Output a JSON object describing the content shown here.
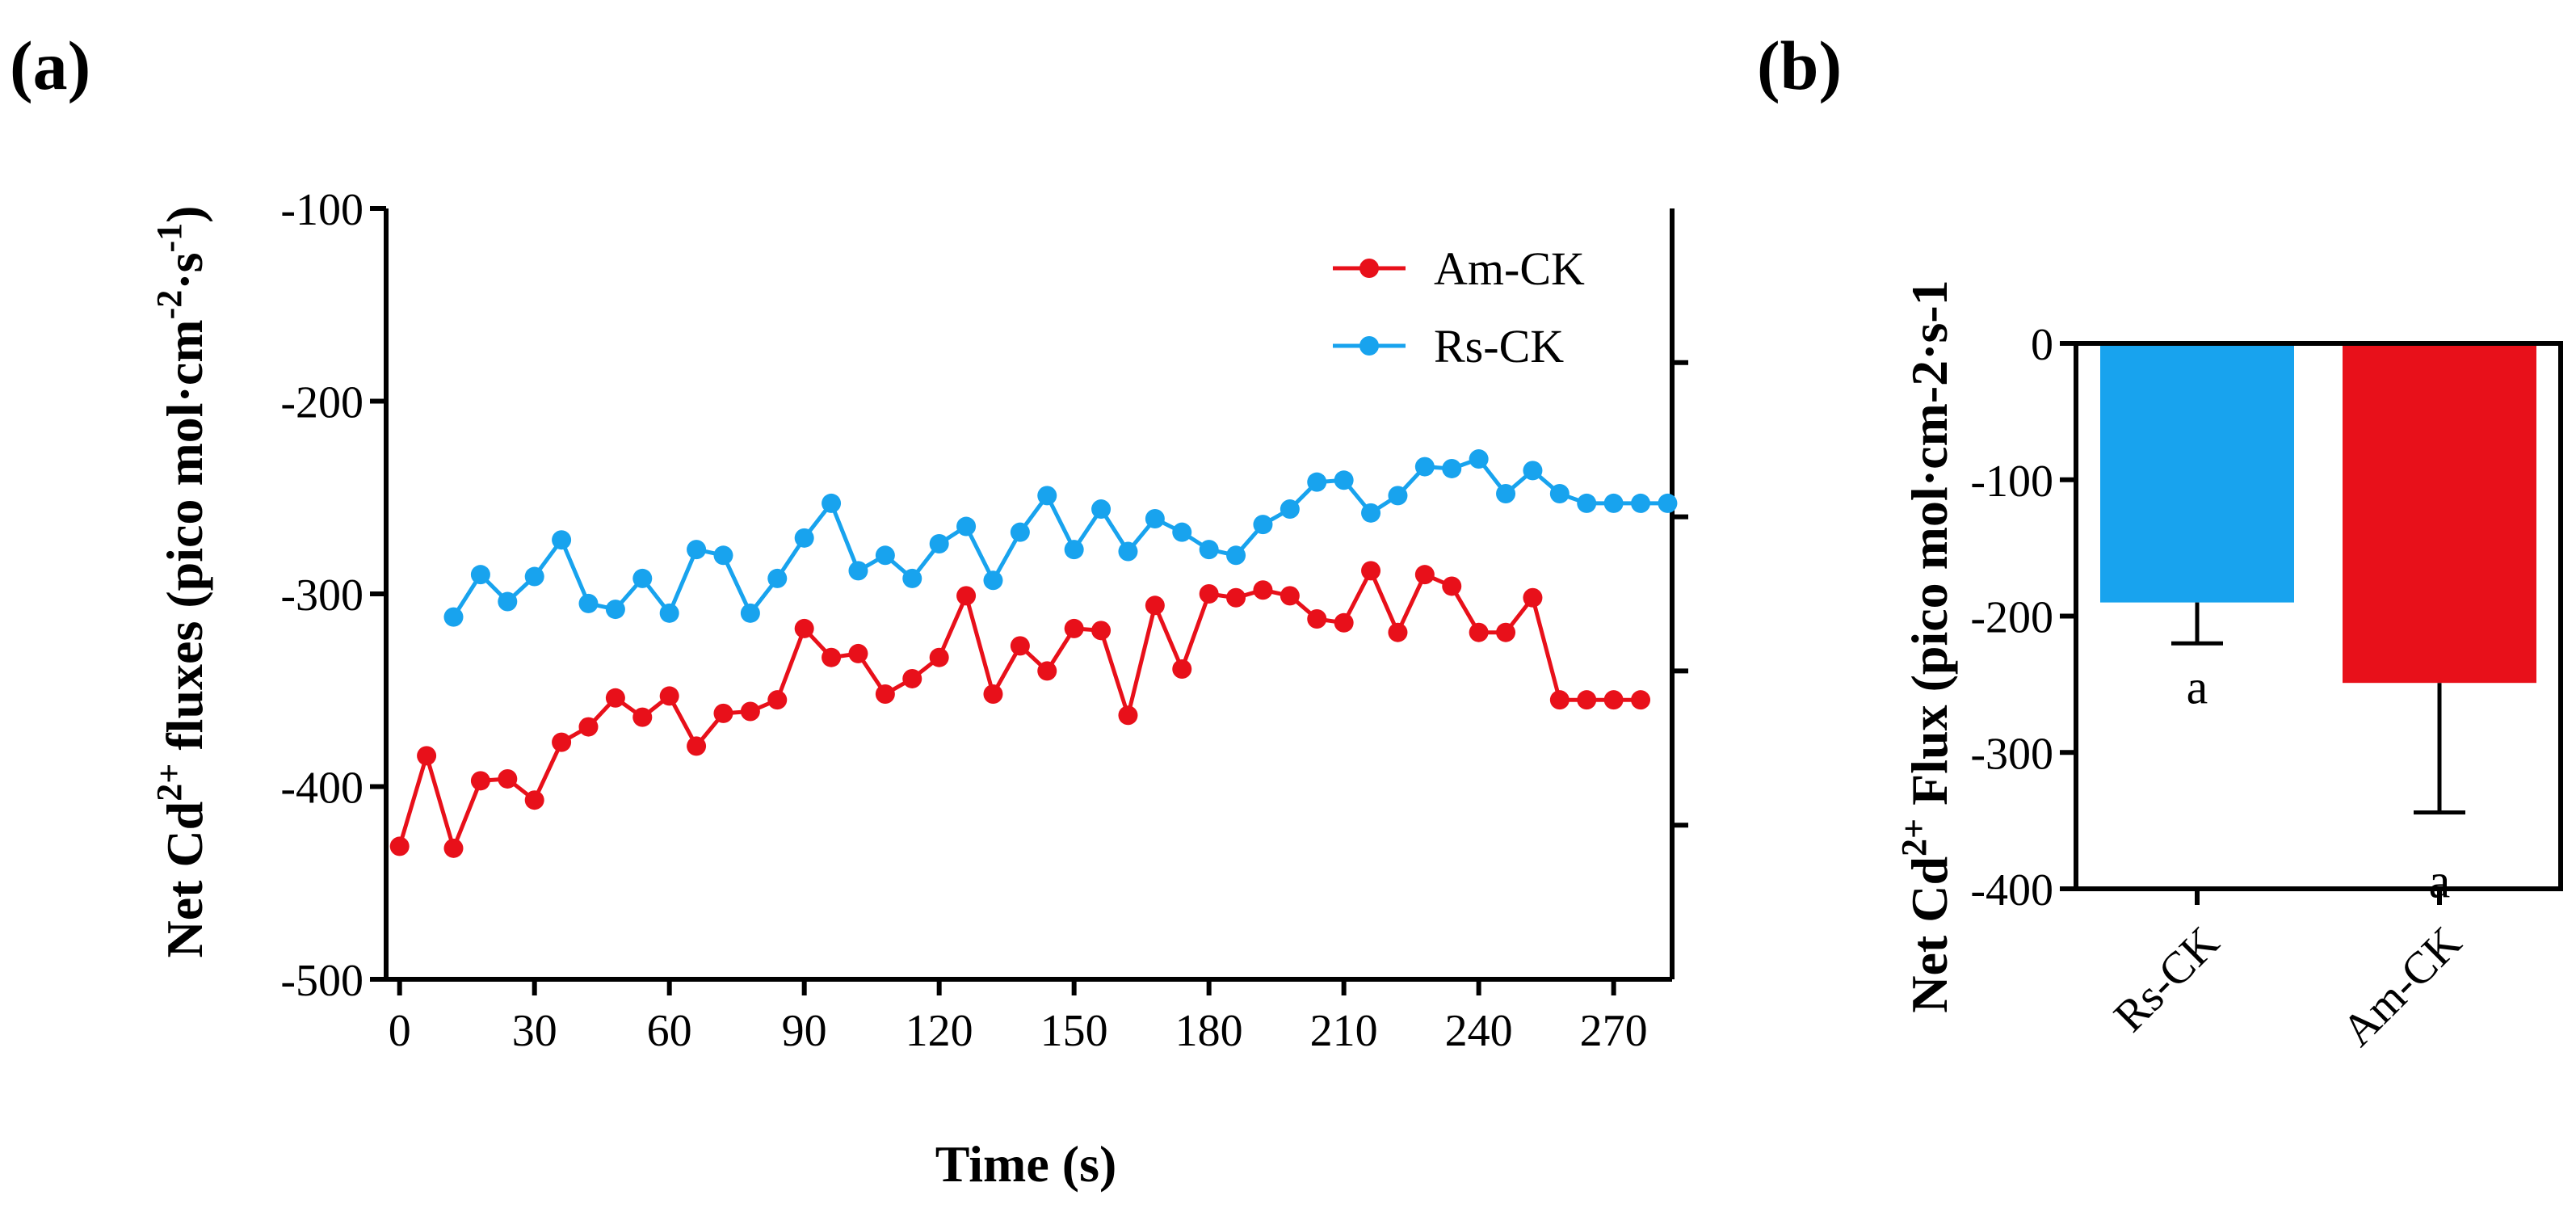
{
  "panels": {
    "a": {
      "label": "(a)"
    },
    "b": {
      "label": "(b)"
    }
  },
  "colors": {
    "am": "#e8101a",
    "rs": "#18a3ee",
    "axis": "#000000"
  },
  "chart_data": [
    {
      "id": "a",
      "type": "line",
      "title": "",
      "xlabel": "Time (s)",
      "ylabel_parts": {
        "prefix": "Net Cd",
        "sup1": "2+",
        "mid": " fluxes (pico mol·cm",
        "sup2": "-2",
        "mid2": "·s",
        "sup3": "-1",
        "suffix": ")"
      },
      "xlim": [
        -3,
        283
      ],
      "ylim": [
        -500,
        -100
      ],
      "xticks": [
        0,
        30,
        60,
        90,
        120,
        150,
        180,
        210,
        240,
        270
      ],
      "xtick_labels": [
        "0",
        "30",
        "60",
        "90",
        "120",
        "150",
        "180",
        "210",
        "240",
        "270"
      ],
      "yticks": [
        -100,
        -200,
        -300,
        -400,
        -500
      ],
      "ytick_labels": [
        "-100",
        "-200",
        "-300",
        "-400",
        "-500"
      ],
      "legend_position": "top-right",
      "series": [
        {
          "name": "Am-CK",
          "color": "#e8101a",
          "x": [
            0,
            6,
            12,
            18,
            24,
            30,
            36,
            42,
            48,
            54,
            60,
            66,
            72,
            78,
            84,
            90,
            96,
            102,
            108,
            114,
            120,
            126,
            132,
            138,
            144,
            150,
            156,
            162,
            168,
            174,
            180,
            186,
            192,
            198,
            204,
            210,
            216,
            222,
            228,
            234,
            240,
            246,
            252,
            258,
            264,
            270,
            276
          ],
          "values": [
            -431,
            -384,
            -432,
            -397,
            -396,
            -407,
            -377,
            -369,
            -354,
            -364,
            -353,
            -379,
            -362,
            -361,
            -355,
            -318,
            -333,
            -331,
            -352,
            -344,
            -333,
            -301,
            -352,
            -327,
            -340,
            -318,
            -319,
            -363,
            -306,
            -339,
            -300,
            -302,
            -298,
            -301,
            -313,
            -315,
            -288,
            -320,
            -290,
            -296,
            -320,
            -320,
            -302,
            -355,
            -355,
            -355,
            -355
          ]
        },
        {
          "name": "Rs-CK",
          "color": "#18a3ee",
          "x": [
            12,
            18,
            24,
            30,
            36,
            42,
            48,
            54,
            60,
            66,
            72,
            78,
            84,
            90,
            96,
            102,
            108,
            114,
            120,
            126,
            132,
            138,
            144,
            150,
            156,
            162,
            168,
            174,
            180,
            186,
            192,
            198,
            204,
            210,
            216,
            222,
            228,
            234,
            240,
            246,
            252,
            258,
            264,
            270,
            276,
            282
          ],
          "values": [
            -312,
            -290,
            -304,
            -291,
            -272,
            -305,
            -308,
            -292,
            -310,
            -277,
            -280,
            -310,
            -292,
            -271,
            -253,
            -288,
            -280,
            -292,
            -274,
            -265,
            -293,
            -268,
            -249,
            -277,
            -256,
            -278,
            -261,
            -268,
            -277,
            -280,
            -264,
            -256,
            -242,
            -241,
            -258,
            -249,
            -234,
            -235,
            -230,
            -248,
            -236,
            -248,
            -253,
            -253,
            -253,
            -253
          ]
        }
      ]
    },
    {
      "id": "b",
      "type": "bar",
      "title": "",
      "xlabel": "",
      "ylabel_parts": {
        "prefix": "Net Cd",
        "sup1": "2+",
        "suffix": " Flux (pico mol·cm-2·s-1"
      },
      "ylim": [
        -400,
        0
      ],
      "yticks": [
        0,
        -100,
        -200,
        -300,
        -400
      ],
      "ytick_labels": [
        "0",
        "-100",
        "-200",
        "-300",
        "-400"
      ],
      "categories": [
        "Rs-CK",
        "Am-CK"
      ],
      "values": [
        -190,
        -249
      ],
      "errors": [
        30,
        95
      ],
      "colors": [
        "#18a3ee",
        "#e8101a"
      ],
      "annotations": [
        "a",
        "a"
      ]
    }
  ]
}
